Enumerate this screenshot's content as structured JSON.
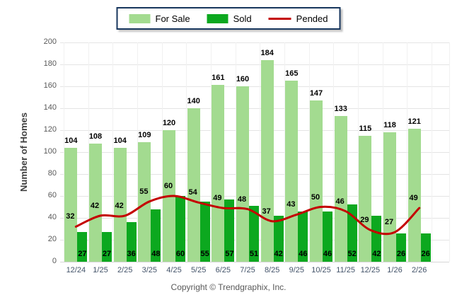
{
  "ylabel": "Number of Homes",
  "footer": {
    "copyright": "Copyright © Trendgraphix, Inc."
  },
  "chart_data": {
    "type": "bar",
    "categories": [
      "12/24",
      "1/25",
      "2/25",
      "3/25",
      "4/25",
      "5/25",
      "6/25",
      "7/25",
      "8/25",
      "9/25",
      "10/25",
      "11/25",
      "12/25",
      "1/26",
      "2/26"
    ],
    "series": [
      {
        "name": "For Sale",
        "chart_type": "bar",
        "color": "#A3DB90",
        "values": [
          104,
          108,
          104,
          109,
          120,
          140,
          161,
          160,
          184,
          165,
          147,
          133,
          115,
          118,
          121
        ]
      },
      {
        "name": "Sold",
        "chart_type": "bar",
        "color": "#0CA81F",
        "values": [
          27,
          27,
          36,
          48,
          60,
          55,
          57,
          51,
          42,
          46,
          46,
          52,
          42,
          26,
          26
        ]
      },
      {
        "name": "Pended",
        "chart_type": "line",
        "color": "#C40000",
        "values": [
          32,
          42,
          42,
          55,
          60,
          54,
          49,
          48,
          37,
          43,
          50,
          46,
          29,
          27,
          49
        ]
      }
    ],
    "title": "",
    "xlabel": "",
    "ylabel": "Number of Homes",
    "ylim": [
      0,
      200
    ],
    "ytick_step": 20,
    "grid": true,
    "legend_position": "top"
  }
}
